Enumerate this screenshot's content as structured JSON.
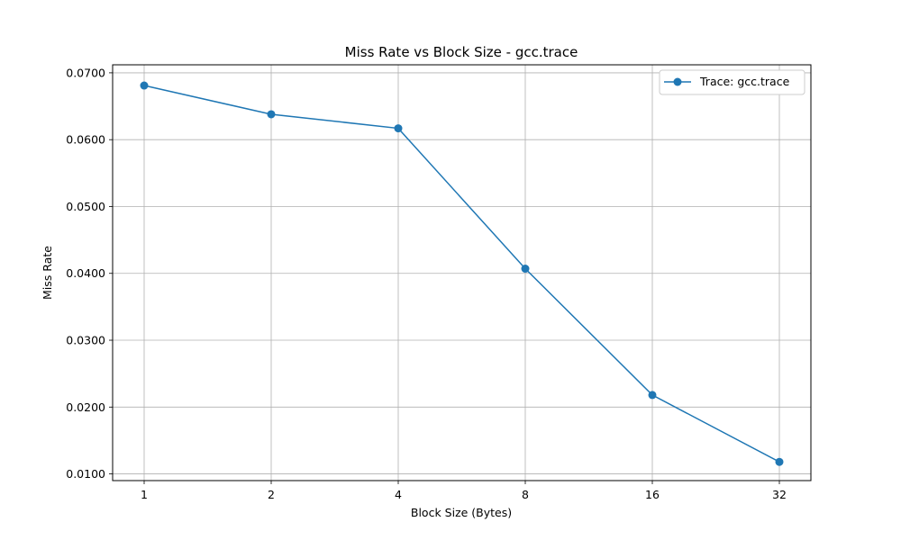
{
  "chart_data": {
    "type": "line",
    "title": "Miss Rate vs Block Size - gcc.trace",
    "xlabel": "Block Size (Bytes)",
    "ylabel": "Miss Rate",
    "categories": [
      "1",
      "2",
      "4",
      "8",
      "16",
      "32"
    ],
    "y_ticks": [
      "0.0100",
      "0.0200",
      "0.0300",
      "0.0400",
      "0.0500",
      "0.0600",
      "0.0700"
    ],
    "ylim": [
      0.009,
      0.0712
    ],
    "grid": true,
    "legend_position": "top-right",
    "series": [
      {
        "name": "Trace: gcc.trace",
        "values": [
          0.0681,
          0.0638,
          0.0617,
          0.0407,
          0.0218,
          0.0118
        ],
        "color": "#1f77b4",
        "marker": "circle"
      }
    ]
  }
}
